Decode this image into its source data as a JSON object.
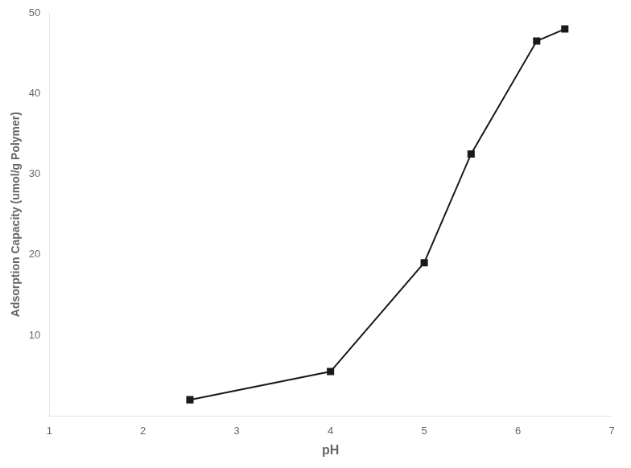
{
  "chart_data": {
    "type": "line",
    "x": [
      2.5,
      4.0,
      5.0,
      5.5,
      6.2,
      6.5
    ],
    "values": [
      2.0,
      5.5,
      19.0,
      32.5,
      46.5,
      48.0
    ],
    "xlabel": "pH",
    "ylabel": "Adsorption Capacity (umol/g Polymer)",
    "xlim": [
      1,
      7
    ],
    "ylim": [
      0,
      50
    ],
    "xticks": [
      1,
      2,
      3,
      4,
      5,
      6,
      7
    ],
    "yticks": [
      10,
      20,
      30,
      40,
      50
    ],
    "color": "#1a1a1a",
    "marker": "square",
    "line_style": "solid",
    "grid": false
  }
}
